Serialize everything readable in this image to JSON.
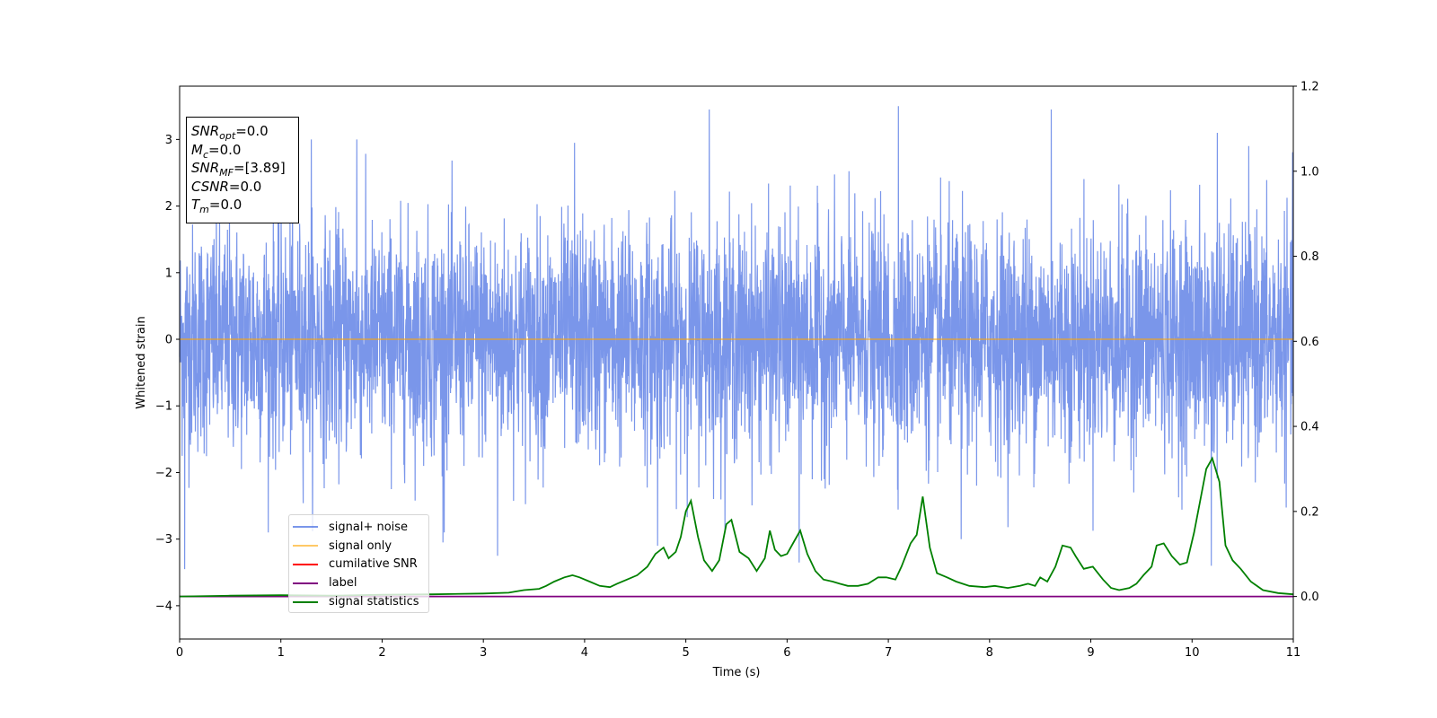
{
  "chart_data": {
    "type": "line",
    "xlabel": "Time (s)",
    "ylabel": "Whitened strain",
    "xlim": [
      0,
      11
    ],
    "ylim": [
      -4.5,
      3.8
    ],
    "y2lim": [
      -0.1,
      1.2
    ],
    "x_ticks": [
      "0",
      "1",
      "2",
      "3",
      "4",
      "5",
      "6",
      "7",
      "8",
      "9",
      "10",
      "11"
    ],
    "y_ticks": [
      "3",
      "2",
      "1",
      "0",
      "−1",
      "−2",
      "−3",
      "−4"
    ],
    "y_tick_values": [
      3,
      2,
      1,
      0,
      -1,
      -2,
      -3,
      -4
    ],
    "y2_ticks": [
      "1.2",
      "1.0",
      "0.8",
      "0.6",
      "0.4",
      "0.2",
      "0.0"
    ],
    "y2_tick_values": [
      1.2,
      1.0,
      0.8,
      0.6,
      0.4,
      0.2,
      0.0
    ],
    "grid": false,
    "legend_position": "lower-left",
    "annotation": {
      "snr_opt": "SNR",
      "snr_opt_sub": "opt",
      "snr_opt_val": "=0.0",
      "mc": "M",
      "mc_sub": "c",
      "mc_val": "=0.0",
      "snr_mf": "SNR",
      "snr_mf_sub": "MF",
      "snr_mf_val": "=[3.89]",
      "csnr": "CSNR",
      "csnr_val": "=0.0",
      "tm": "T",
      "tm_sub": "m",
      "tm_val": "=0.0"
    },
    "series": [
      {
        "name": "signal+ noise",
        "color": "#4169e1",
        "description_stats": {
          "mean": 0,
          "std": 0.85
        },
        "notable_peaks": [
          {
            "x": 0.05,
            "y": -3.45
          },
          {
            "x": 1.3,
            "y": 3.0
          },
          {
            "x": 1.75,
            "y": 3.0
          },
          {
            "x": 2.6,
            "y": -3.05
          },
          {
            "x": 3.14,
            "y": -3.25
          },
          {
            "x": 3.9,
            "y": 2.95
          },
          {
            "x": 5.23,
            "y": 3.45
          },
          {
            "x": 4.72,
            "y": -3.1
          },
          {
            "x": 6.12,
            "y": -3.35
          },
          {
            "x": 7.1,
            "y": 3.5
          },
          {
            "x": 7.72,
            "y": -3.0
          },
          {
            "x": 8.61,
            "y": 3.45
          },
          {
            "x": 10.19,
            "y": -3.4
          },
          {
            "x": 10.25,
            "y": 3.1
          }
        ]
      },
      {
        "name": "signal only",
        "color": "#ffa500",
        "x": [
          0,
          11
        ],
        "y": [
          0,
          0
        ]
      },
      {
        "name": "cumilative SNR",
        "color": "#ff0000",
        "x": [],
        "y": []
      },
      {
        "name": "label",
        "color": "#800080",
        "axis": "right",
        "x": [
          0,
          11
        ],
        "y": [
          0,
          0
        ]
      },
      {
        "name": "signal statistics",
        "color": "#008000",
        "axis": "right",
        "x": [
          0,
          0.5,
          1.0,
          1.5,
          2.0,
          2.5,
          3.0,
          3.25,
          3.4,
          3.55,
          3.62,
          3.7,
          3.8,
          3.88,
          3.95,
          4.05,
          4.15,
          4.25,
          4.32,
          4.42,
          4.52,
          4.62,
          4.7,
          4.78,
          4.83,
          4.9,
          4.95,
          5.0,
          5.05,
          5.12,
          5.18,
          5.26,
          5.33,
          5.4,
          5.45,
          5.53,
          5.62,
          5.7,
          5.78,
          5.83,
          5.88,
          5.94,
          6.0,
          6.07,
          6.13,
          6.2,
          6.28,
          6.36,
          6.45,
          6.52,
          6.6,
          6.7,
          6.8,
          6.9,
          6.98,
          7.07,
          7.13,
          7.22,
          7.28,
          7.34,
          7.41,
          7.48,
          7.58,
          7.67,
          7.8,
          7.95,
          8.05,
          8.18,
          8.3,
          8.38,
          8.45,
          8.5,
          8.57,
          8.65,
          8.72,
          8.8,
          8.85,
          8.93,
          9.02,
          9.12,
          9.2,
          9.28,
          9.38,
          9.45,
          9.52,
          9.6,
          9.65,
          9.72,
          9.8,
          9.88,
          9.95,
          10.02,
          10.08,
          10.14,
          10.2,
          10.27,
          10.33,
          10.4,
          10.48,
          10.58,
          10.7,
          10.85,
          11.0
        ],
        "y": [
          0.0,
          0.002,
          0.003,
          0.002,
          0.004,
          0.005,
          0.007,
          0.009,
          0.015,
          0.018,
          0.025,
          0.035,
          0.045,
          0.05,
          0.045,
          0.035,
          0.025,
          0.022,
          0.03,
          0.04,
          0.05,
          0.07,
          0.1,
          0.115,
          0.09,
          0.105,
          0.14,
          0.2,
          0.225,
          0.14,
          0.085,
          0.06,
          0.085,
          0.17,
          0.18,
          0.105,
          0.09,
          0.06,
          0.09,
          0.155,
          0.11,
          0.095,
          0.1,
          0.13,
          0.155,
          0.1,
          0.06,
          0.04,
          0.035,
          0.03,
          0.025,
          0.025,
          0.03,
          0.045,
          0.045,
          0.04,
          0.07,
          0.125,
          0.145,
          0.235,
          0.115,
          0.055,
          0.045,
          0.035,
          0.025,
          0.022,
          0.025,
          0.02,
          0.025,
          0.03,
          0.025,
          0.045,
          0.035,
          0.07,
          0.12,
          0.115,
          0.095,
          0.065,
          0.07,
          0.04,
          0.02,
          0.015,
          0.02,
          0.03,
          0.05,
          0.07,
          0.12,
          0.125,
          0.095,
          0.075,
          0.08,
          0.15,
          0.225,
          0.3,
          0.325,
          0.27,
          0.12,
          0.085,
          0.065,
          0.035,
          0.015,
          0.008,
          0.005
        ]
      }
    ]
  }
}
